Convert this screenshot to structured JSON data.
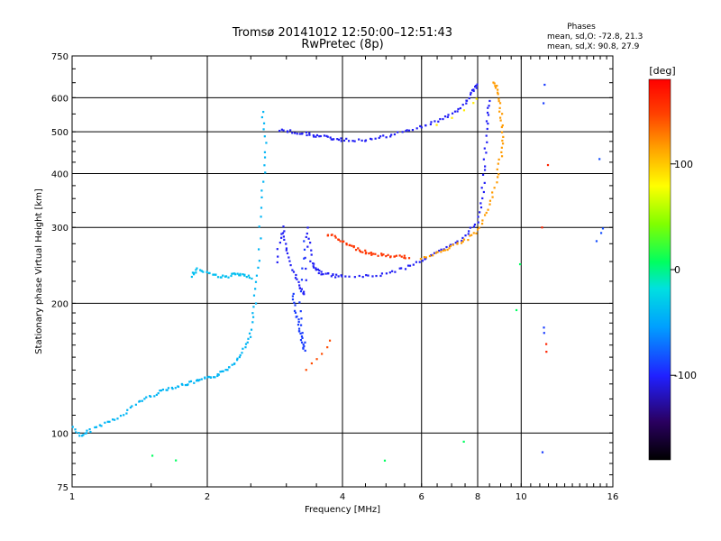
{
  "chart_data": {
    "type": "scatter",
    "title": "Tromsø 20141012 12:50:00–12:51:43",
    "subtitle": "RwPretec (8p)",
    "xlabel": "Frequency [MHz]",
    "ylabel": "Stationary phase Virtual Height [km]",
    "x_scale": "log",
    "y_scale": "log",
    "xlim": [
      1,
      16
    ],
    "ylim": [
      75,
      750
    ],
    "x_ticks": [
      1,
      2,
      4,
      6,
      8,
      10,
      16
    ],
    "x_tick_labels": [
      "1",
      "2",
      "4",
      "6",
      "8",
      "10",
      "16"
    ],
    "y_ticks": [
      75,
      100,
      200,
      300,
      400,
      500,
      600,
      750
    ],
    "y_tick_labels": [
      "75",
      "100",
      "200",
      "300",
      "400",
      "500",
      "600",
      "750"
    ],
    "grid": true,
    "stats": {
      "heading": "Phases",
      "line_o": "mean, sd,O:  -72.8, 21.3",
      "line_x": "mean, sd,X:  90.8, 27.9"
    },
    "colorbar": {
      "label": "[deg]",
      "ticks": [
        100,
        0,
        -100
      ],
      "tick_labels": [
        "100",
        "0",
        "-100"
      ],
      "range": [
        -180,
        180
      ],
      "colors": [
        "#000000",
        "#2a0060",
        "#2020ff",
        "#00a0ff",
        "#00e0e0",
        "#00ff60",
        "#80ff00",
        "#ffff00",
        "#ffa000",
        "#ff4000",
        "#ff0000"
      ]
    },
    "traces": [
      {
        "name": "",
        "phase": -60,
        "points": [
          [
            1.0,
            104
          ],
          [
            1.05,
            98
          ],
          [
            1.1,
            102
          ],
          [
            1.2,
            106
          ],
          [
            1.3,
            110
          ],
          [
            1.4,
            118
          ],
          [
            1.5,
            122
          ],
          [
            1.6,
            126
          ],
          [
            1.7,
            128
          ],
          [
            1.8,
            130
          ],
          [
            1.9,
            132
          ],
          [
            2.0,
            134
          ],
          [
            2.1,
            136
          ],
          [
            2.2,
            140
          ],
          [
            2.3,
            146
          ],
          [
            2.4,
            156
          ],
          [
            2.5,
            170
          ],
          [
            2.55,
            200
          ],
          [
            2.6,
            250
          ],
          [
            2.65,
            350
          ],
          [
            2.7,
            450
          ],
          [
            2.65,
            560
          ]
        ]
      },
      {
        "name": "",
        "phase": -55,
        "points": [
          [
            1.85,
            232
          ],
          [
            1.9,
            240
          ],
          [
            2.0,
            236
          ],
          [
            2.1,
            232
          ],
          [
            2.2,
            230
          ],
          [
            2.3,
            234
          ],
          [
            2.4,
            232
          ],
          [
            2.5,
            230
          ]
        ]
      },
      {
        "name": "",
        "phase": -110,
        "points": [
          [
            2.85,
            250
          ],
          [
            2.95,
            300
          ],
          [
            3.0,
            270
          ],
          [
            3.1,
            240
          ],
          [
            3.2,
            220
          ],
          [
            3.3,
            210
          ],
          [
            3.35,
            300
          ],
          [
            3.4,
            250
          ],
          [
            3.5,
            240
          ],
          [
            3.6,
            235
          ],
          [
            3.8,
            232
          ],
          [
            4.0,
            231
          ],
          [
            4.5,
            231
          ],
          [
            5.0,
            234
          ],
          [
            5.5,
            242
          ],
          [
            6.0,
            252
          ],
          [
            6.5,
            262
          ],
          [
            7.0,
            272
          ],
          [
            7.5,
            286
          ],
          [
            8.0,
            310
          ],
          [
            8.2,
            360
          ],
          [
            8.3,
            430
          ],
          [
            8.4,
            520
          ],
          [
            8.5,
            590
          ]
        ]
      },
      {
        "name": "",
        "phase": -100,
        "points": [
          [
            3.1,
            210
          ],
          [
            3.15,
            190
          ],
          [
            3.2,
            175
          ],
          [
            3.25,
            165
          ],
          [
            3.3,
            155
          ],
          [
            3.2,
            200
          ],
          [
            3.3,
            280
          ]
        ]
      },
      {
        "name": "",
        "phase": 140,
        "points": [
          [
            3.3,
            140
          ],
          [
            3.4,
            145
          ],
          [
            3.5,
            148
          ],
          [
            3.6,
            152
          ],
          [
            3.7,
            158
          ],
          [
            3.75,
            165
          ]
        ]
      },
      {
        "name": "",
        "phase": 150,
        "points": [
          [
            3.7,
            290
          ],
          [
            3.9,
            282
          ],
          [
            4.1,
            274
          ],
          [
            4.3,
            268
          ],
          [
            4.5,
            263
          ],
          [
            4.7,
            260
          ],
          [
            5.0,
            258
          ],
          [
            5.3,
            257
          ],
          [
            5.6,
            256
          ]
        ]
      },
      {
        "name": "",
        "phase": -110,
        "points": [
          [
            2.9,
            505
          ],
          [
            3.1,
            500
          ],
          [
            3.3,
            495
          ],
          [
            3.5,
            490
          ],
          [
            3.7,
            485
          ],
          [
            3.9,
            480
          ],
          [
            4.2,
            478
          ],
          [
            4.6,
            480
          ],
          [
            5.0,
            488
          ],
          [
            5.5,
            500
          ],
          [
            6.0,
            515
          ],
          [
            6.5,
            530
          ],
          [
            7.0,
            550
          ],
          [
            7.5,
            580
          ],
          [
            7.8,
            620
          ],
          [
            8.0,
            640
          ]
        ]
      },
      {
        "name": "",
        "phase": 110,
        "points": [
          [
            6.0,
            255
          ],
          [
            6.5,
            262
          ],
          [
            7.0,
            270
          ],
          [
            7.5,
            280
          ],
          [
            8.0,
            295
          ],
          [
            8.4,
            330
          ],
          [
            8.8,
            380
          ],
          [
            9.0,
            440
          ],
          [
            9.1,
            500
          ],
          [
            9.0,
            560
          ],
          [
            8.9,
            620
          ],
          [
            8.7,
            650
          ]
        ]
      },
      {
        "name": "",
        "phase": 80,
        "points": [
          [
            6.5,
            520
          ],
          [
            7.0,
            540
          ],
          [
            7.5,
            560
          ],
          [
            7.8,
            580
          ],
          [
            8.0,
            600
          ]
        ]
      },
      {
        "name": "",
        "phase": -100,
        "points": [
          [
            11.2,
            640
          ],
          [
            11.2,
            580
          ],
          [
            11.3,
            175
          ],
          [
            11.3,
            170
          ],
          [
            11.2,
            90
          ]
        ]
      },
      {
        "name": "",
        "phase": 160,
        "points": [
          [
            11.3,
            162
          ],
          [
            11.3,
            155
          ],
          [
            11.4,
            420
          ],
          [
            11.2,
            300
          ]
        ]
      },
      {
        "name": "",
        "phase": -95,
        "points": [
          [
            15.0,
            290
          ],
          [
            14.8,
            280
          ],
          [
            14.9,
            430
          ],
          [
            15.1,
            300
          ]
        ]
      },
      {
        "name": "",
        "phase": 0,
        "points": [
          [
            7.5,
            96
          ],
          [
            9.8,
            192
          ],
          [
            9.9,
            245
          ],
          [
            5.0,
            86
          ],
          [
            1.5,
            88
          ],
          [
            1.7,
            86
          ]
        ]
      }
    ]
  }
}
